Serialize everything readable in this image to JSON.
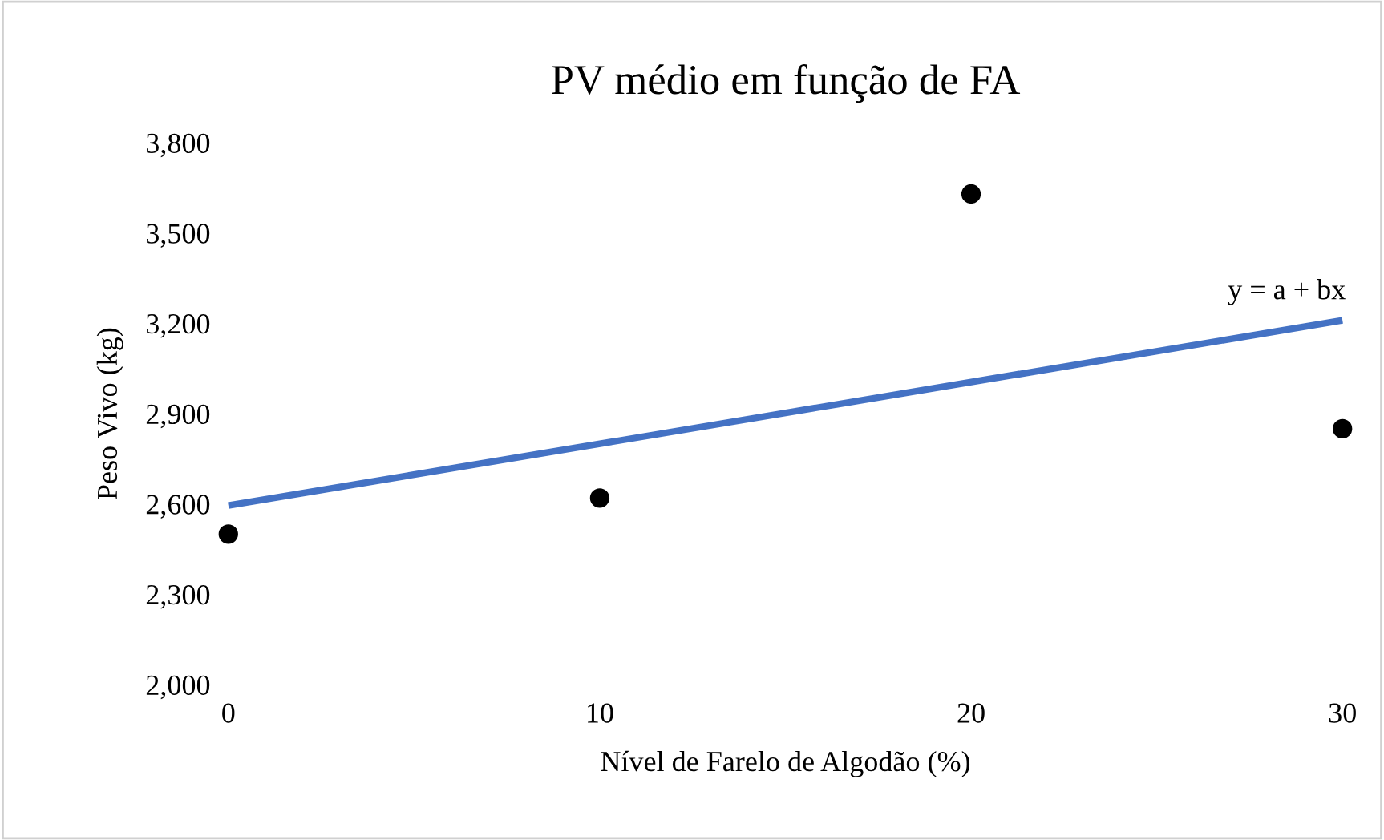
{
  "chart_data": {
    "type": "scatter",
    "title": "PV médio em função de FA",
    "xlabel": "Nível de Farelo de Algodão (%)",
    "ylabel": "Peso Vivo (kg)",
    "xlim": [
      0,
      30
    ],
    "xticks": [
      0,
      10,
      20,
      30
    ],
    "ylim": [
      2000,
      3800
    ],
    "yticks": [
      {
        "value": 2000,
        "label": "2,000"
      },
      {
        "value": 2300,
        "label": "2,300"
      },
      {
        "value": 2600,
        "label": "2,600"
      },
      {
        "value": 2900,
        "label": "2,900"
      },
      {
        "value": 3200,
        "label": "3,200"
      },
      {
        "value": 3500,
        "label": "3,500"
      },
      {
        "value": 3800,
        "label": "3,800"
      }
    ],
    "grid": false,
    "legend": false,
    "series": [
      {
        "color": "#000000",
        "marker": "circle",
        "x": [
          0,
          10,
          20,
          30
        ],
        "values": [
          2500,
          2620,
          3630,
          2850
        ]
      },
      {
        "type": "line",
        "color": "#4472c4",
        "x": [
          0,
          30
        ],
        "values": [
          2595,
          3210
        ],
        "line_style": "solid"
      }
    ],
    "annotations": [
      "y = a + bx"
    ]
  }
}
